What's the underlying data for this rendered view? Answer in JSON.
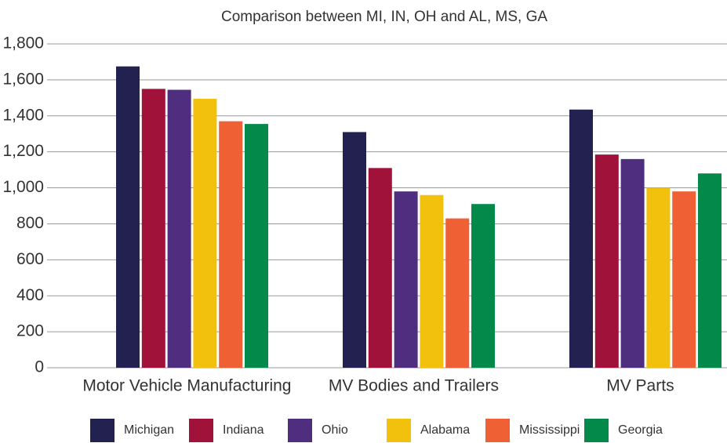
{
  "chart_data": {
    "type": "bar",
    "title": "Comparison between MI, IN, OH and AL, MS, GA",
    "categories": [
      "Motor Vehicle Manufacturing",
      "MV Bodies and Trailers",
      "MV Parts"
    ],
    "series": [
      {
        "name": "Michigan",
        "color": "#22214f",
        "values": [
          1675,
          1310,
          1435
        ]
      },
      {
        "name": "Indiana",
        "color": "#a0123a",
        "values": [
          1550,
          1110,
          1185
        ]
      },
      {
        "name": "Ohio",
        "color": "#4f2d7f",
        "values": [
          1545,
          980,
          1160
        ]
      },
      {
        "name": "Alabama",
        "color": "#f2c10e",
        "values": [
          1495,
          960,
          1000
        ]
      },
      {
        "name": "Mississippi",
        "color": "#ef6035",
        "values": [
          1370,
          830,
          980
        ]
      },
      {
        "name": "Georgia",
        "color": "#038a4b",
        "values": [
          1355,
          910,
          1080
        ]
      }
    ],
    "ylim": [
      0,
      1800
    ],
    "yticks": [
      0,
      200,
      400,
      600,
      800,
      {
        "value": 1000,
        "label": "1,000"
      },
      {
        "value": 1200,
        "label": "1,200"
      },
      {
        "value": 1400,
        "label": "1,400"
      },
      {
        "value": 1600,
        "label": "1,600"
      },
      {
        "value": 1800,
        "label": "1,800"
      }
    ],
    "grid": true,
    "legend": "bottom"
  }
}
